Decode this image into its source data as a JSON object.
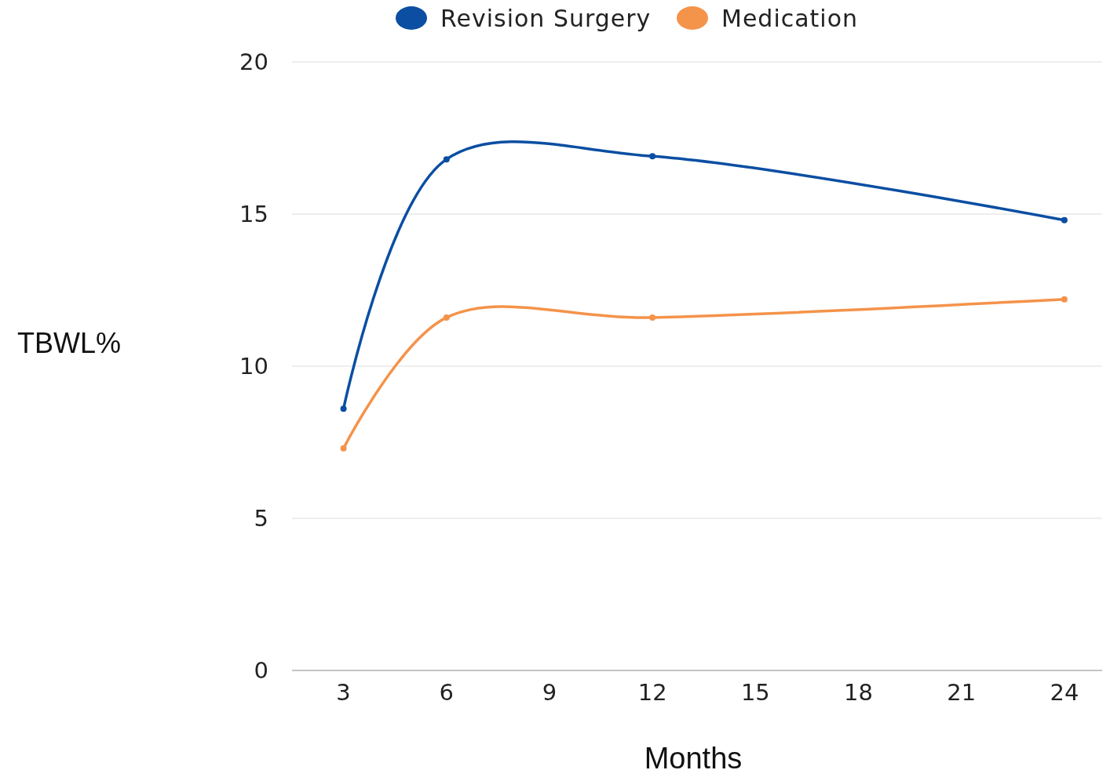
{
  "chart_data": {
    "type": "line",
    "xlabel": "Months",
    "ylabel": "TBWL%",
    "x": [
      3,
      6,
      12,
      24
    ],
    "series": [
      {
        "name": "Revision Surgery",
        "color": "#0b4ea2",
        "values": [
          8.6,
          16.8,
          16.9,
          14.8
        ]
      },
      {
        "name": "Medication",
        "color": "#f4934a",
        "values": [
          7.3,
          11.6,
          11.6,
          12.2
        ]
      }
    ],
    "xlim": [
      1.5,
      25.1
    ],
    "xticks": [
      3,
      6,
      9,
      12,
      15,
      18,
      21,
      24
    ],
    "ylim": [
      0,
      20
    ],
    "yticks": [
      0,
      5,
      10,
      15,
      20
    ],
    "grid": "y",
    "legend": "top",
    "marker": "circle",
    "line_style": "solid"
  }
}
